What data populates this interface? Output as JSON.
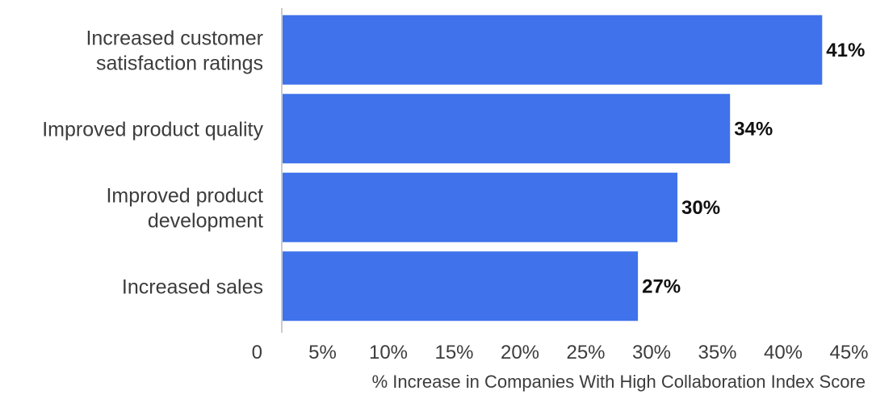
{
  "chart_data": {
    "type": "bar",
    "orientation": "horizontal",
    "title": "",
    "xlabel": "% Increase in Companies With High Collaboration Index Score",
    "ylabel": "",
    "categories": [
      [
        "Increased customer",
        "satisfaction ratings"
      ],
      [
        "Improved product quality"
      ],
      [
        "Improved product",
        "development"
      ],
      [
        "Increased sales"
      ]
    ],
    "values": [
      41,
      34,
      30,
      27
    ],
    "value_labels": [
      "41%",
      "34%",
      "30%",
      "27%"
    ],
    "xlim": [
      0,
      45
    ],
    "ticks": [
      0,
      5,
      10,
      15,
      20,
      25,
      30,
      35,
      40,
      45
    ],
    "tick_labels": [
      "0",
      "5%",
      "10%",
      "15%",
      "20%",
      "25%",
      "30%",
      "35%",
      "40%",
      "45%"
    ],
    "bar_color": "#3f72eb",
    "axis_color": "#cccccc",
    "grid": false,
    "legend": "none"
  }
}
